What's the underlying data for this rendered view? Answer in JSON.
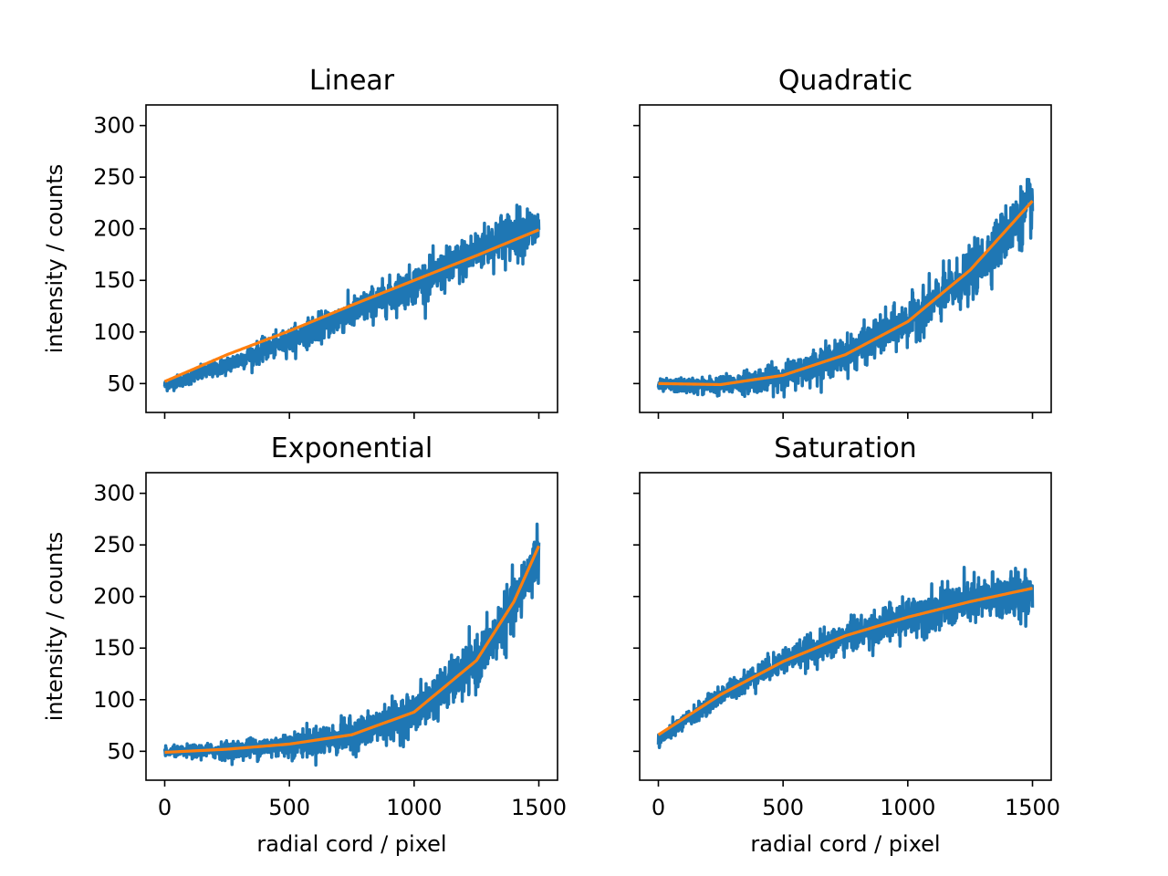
{
  "chart_data": [
    {
      "type": "line",
      "title": "Linear",
      "xlabel": "",
      "ylabel": "intensity / counts",
      "xlim": [
        -75,
        1575
      ],
      "ylim": [
        22,
        320
      ],
      "xticks": [
        0,
        500,
        1000,
        1500
      ],
      "yticks": [
        50,
        100,
        150,
        200,
        250,
        300
      ],
      "show_xticklabels": false,
      "show_yticklabels": true,
      "grid": false,
      "series": [
        {
          "color": "#1f77b4",
          "kind": "noisy-data",
          "points": [
            [
              0,
              48
            ],
            [
              250,
              68
            ],
            [
              500,
              92
            ],
            [
              750,
              118
            ],
            [
              1000,
              146
            ],
            [
              1100,
              156
            ],
            [
              1250,
              178
            ],
            [
              1350,
              192
            ],
            [
              1500,
              200
            ]
          ],
          "noise_sd": [
            5,
            22
          ]
        },
        {
          "color": "#ff7f0e",
          "kind": "fit",
          "points": [
            [
              0,
              52
            ],
            [
              250,
              78
            ],
            [
              500,
              101
            ],
            [
              750,
              126
            ],
            [
              1000,
              150
            ],
            [
              1250,
              174
            ],
            [
              1500,
              199
            ]
          ]
        }
      ]
    },
    {
      "type": "line",
      "title": "Quadratic",
      "xlabel": "",
      "ylabel": "",
      "xlim": [
        -75,
        1575
      ],
      "ylim": [
        22,
        320
      ],
      "xticks": [
        0,
        500,
        1000,
        1500
      ],
      "yticks": [
        50,
        100,
        150,
        200,
        250,
        300
      ],
      "show_xticklabels": false,
      "show_yticklabels": false,
      "grid": false,
      "series": [
        {
          "color": "#1f77b4",
          "kind": "noisy-data",
          "points": [
            [
              0,
              48
            ],
            [
              250,
              48
            ],
            [
              500,
              57
            ],
            [
              750,
              78
            ],
            [
              1000,
              110
            ],
            [
              1250,
              155
            ],
            [
              1500,
              225
            ]
          ],
          "noise_sd": [
            5,
            25
          ]
        },
        {
          "color": "#ff7f0e",
          "kind": "fit",
          "points": [
            [
              0,
              50
            ],
            [
              250,
              49
            ],
            [
              500,
              58
            ],
            [
              750,
              78
            ],
            [
              1000,
              110
            ],
            [
              1250,
              160
            ],
            [
              1500,
              227
            ]
          ]
        }
      ]
    },
    {
      "type": "line",
      "title": "Exponential",
      "xlabel": "radial cord / pixel",
      "ylabel": "intensity / counts",
      "xlim": [
        -75,
        1575
      ],
      "ylim": [
        22,
        320
      ],
      "xticks": [
        0,
        500,
        1000,
        1500
      ],
      "yticks": [
        50,
        100,
        150,
        200,
        250,
        300
      ],
      "show_xticklabels": true,
      "show_yticklabels": true,
      "grid": false,
      "series": [
        {
          "color": "#1f77b4",
          "kind": "noisy-data",
          "points": [
            [
              0,
              49
            ],
            [
              250,
              51
            ],
            [
              500,
              56
            ],
            [
              750,
              65
            ],
            [
              1000,
              87
            ],
            [
              1250,
              135
            ],
            [
              1400,
              190
            ],
            [
              1500,
              245
            ]
          ],
          "noise_sd": [
            4,
            25
          ]
        },
        {
          "color": "#ff7f0e",
          "kind": "fit",
          "points": [
            [
              0,
              49
            ],
            [
              250,
              52
            ],
            [
              500,
              57
            ],
            [
              750,
              66
            ],
            [
              1000,
              88
            ],
            [
              1250,
              138
            ],
            [
              1400,
              195
            ],
            [
              1500,
              249
            ]
          ]
        }
      ]
    },
    {
      "type": "line",
      "title": "Saturation",
      "xlabel": "radial cord / pixel",
      "ylabel": "",
      "xlim": [
        -75,
        1575
      ],
      "ylim": [
        22,
        320
      ],
      "xticks": [
        0,
        500,
        1000,
        1500
      ],
      "yticks": [
        50,
        100,
        150,
        200,
        250,
        300
      ],
      "show_xticklabels": true,
      "show_yticklabels": false,
      "grid": false,
      "series": [
        {
          "color": "#1f77b4",
          "kind": "noisy-data",
          "points": [
            [
              0,
              60
            ],
            [
              250,
              104
            ],
            [
              500,
              138
            ],
            [
              750,
              160
            ],
            [
              1000,
              180
            ],
            [
              1250,
              195
            ],
            [
              1500,
              205
            ]
          ],
          "noise_sd": [
            6,
            22
          ]
        },
        {
          "color": "#ff7f0e",
          "kind": "fit",
          "points": [
            [
              0,
              66
            ],
            [
              250,
              105
            ],
            [
              500,
              137
            ],
            [
              750,
              162
            ],
            [
              1000,
              180
            ],
            [
              1250,
              195
            ],
            [
              1500,
              208
            ]
          ]
        }
      ]
    }
  ]
}
